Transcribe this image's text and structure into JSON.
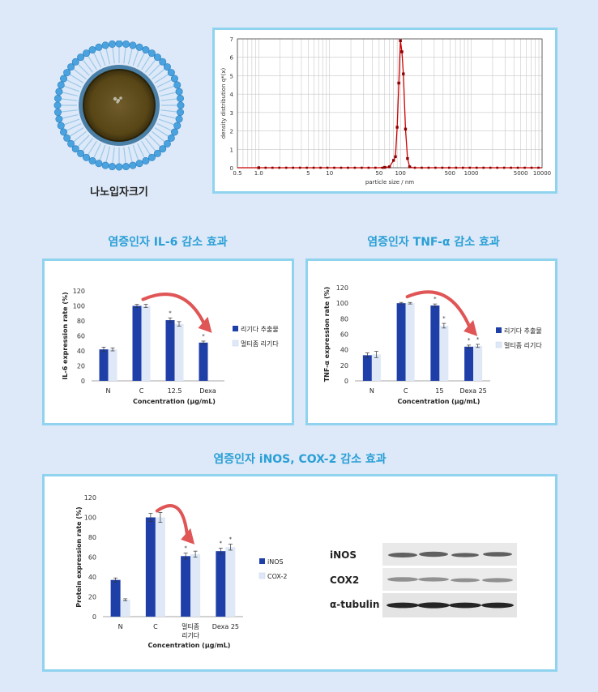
{
  "nano": {
    "label": "나노입자크기"
  },
  "dls": {
    "type": "line",
    "ylabel": "density distribution q*(x)",
    "xlabel": "particle size / nm",
    "xticks": [
      "0.5",
      "1.0",
      "5",
      "10",
      "50",
      "100",
      "500",
      "1000",
      "5000",
      "10000"
    ],
    "xtick_vals": [
      0.5,
      1,
      5,
      10,
      50,
      100,
      500,
      1000,
      5000,
      10000
    ],
    "yticks": [
      0,
      1,
      2,
      3,
      4,
      5,
      6,
      7
    ],
    "xlim": [
      0.5,
      10000
    ],
    "ylim": [
      0,
      7
    ],
    "points": [
      [
        0.5,
        0
      ],
      [
        1,
        0
      ],
      [
        5,
        0
      ],
      [
        10,
        0
      ],
      [
        50,
        0
      ],
      [
        60,
        0.02
      ],
      [
        70,
        0.05
      ],
      [
        80,
        0.4
      ],
      [
        85,
        0.6
      ],
      [
        90,
        2.2
      ],
      [
        95,
        4.6
      ],
      [
        100,
        6.9
      ],
      [
        105,
        6.3
      ],
      [
        110,
        5.1
      ],
      [
        118,
        2.1
      ],
      [
        126,
        0.5
      ],
      [
        135,
        0.05
      ],
      [
        150,
        0
      ],
      [
        500,
        0
      ],
      [
        1000,
        0
      ],
      [
        10000,
        0
      ]
    ],
    "color": "#cc0000"
  },
  "titles": {
    "il6": "염증인자 IL-6 감소 효과",
    "tnf": "염증인자 TNF-α 감소 효과",
    "inos": "염증인자 iNOS, COX-2 감소 효과"
  },
  "chart_data": [
    {
      "type": "bar",
      "ylabel": "IL-6 expression rate (%)",
      "xlabel": "Concentration (μg/mL)",
      "categories": [
        "N",
        "C",
        "12.5",
        "Dexa"
      ],
      "ylim": [
        0,
        120
      ],
      "yticks": [
        0,
        20,
        40,
        60,
        80,
        100,
        120
      ],
      "series": [
        {
          "name": "리기다 추출물",
          "values": [
            42,
            100,
            81,
            51
          ],
          "err": [
            3,
            2,
            3,
            2
          ],
          "color": "#1f3fa8"
        },
        {
          "name": "멀티좀 리기다",
          "values": [
            42,
            100,
            76,
            null
          ],
          "err": [
            2,
            2,
            3,
            0
          ],
          "color": "#dfe8f7"
        }
      ],
      "stars": [
        [
          2,
          0
        ],
        [
          3,
          0
        ]
      ],
      "legend": "right"
    },
    {
      "type": "bar",
      "ylabel": "TNF-α expression rate (%)",
      "xlabel": "Concentration (μg/mL)",
      "categories": [
        "N",
        "C",
        "15",
        "Dexa 25"
      ],
      "ylim": [
        0,
        120
      ],
      "yticks": [
        0,
        20,
        40,
        60,
        80,
        100,
        120
      ],
      "series": [
        {
          "name": "리기다 추출물",
          "values": [
            33,
            100,
            97,
            44
          ],
          "err": [
            3,
            1,
            2,
            2
          ],
          "color": "#1f3fa8"
        },
        {
          "name": "멀티좀 리기다",
          "values": [
            34,
            100,
            71,
            45
          ],
          "err": [
            4,
            1,
            3,
            2
          ],
          "color": "#dfe8f7"
        }
      ],
      "stars": [
        [
          2,
          0
        ],
        [
          2,
          1
        ],
        [
          3,
          0
        ],
        [
          3,
          1
        ]
      ],
      "legend": "right"
    },
    {
      "type": "bar",
      "ylabel": "Protein expression rate (%)",
      "xlabel": "Concentration (μg/mL)",
      "categories": [
        "N",
        "C",
        "멀티좀\n리기다",
        "Dexa 25"
      ],
      "ylim": [
        0,
        120
      ],
      "yticks": [
        0,
        20,
        40,
        60,
        80,
        100,
        120
      ],
      "series": [
        {
          "name": "iNOS",
          "values": [
            37,
            100,
            61,
            66
          ],
          "err": [
            2,
            4,
            3,
            3
          ],
          "color": "#1f3fa8"
        },
        {
          "name": "COX-2",
          "values": [
            17,
            100,
            63,
            70
          ],
          "err": [
            1,
            5,
            3,
            3
          ],
          "color": "#dfe8f7"
        }
      ],
      "stars": [
        [
          2,
          0
        ],
        [
          3,
          0
        ],
        [
          3,
          1
        ]
      ],
      "legend": "right"
    }
  ],
  "blot": {
    "labels": [
      "iNOS",
      "COX2",
      "α-tubulin"
    ]
  }
}
